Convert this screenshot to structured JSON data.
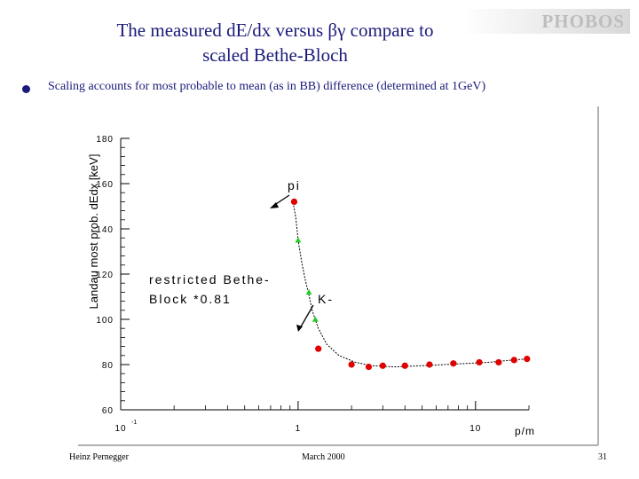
{
  "slide": {
    "title_line1": "The measured dE/dx versus βγ compare to",
    "title_line2": "scaled Bethe-Bloch",
    "logo_text": "PHOBOS",
    "bullet_text_before": "Scaling accounts for most probable to mean (as in ",
    "bullet_text_bb": "BB",
    "bullet_text_after": ") difference (determined at 1GeV)",
    "accent_color": "#1a1a7a"
  },
  "footer": {
    "left": "Heinz Pernegger",
    "center": "March 2000",
    "page": "31"
  },
  "chart_data": {
    "type": "scatter",
    "ylabel": "Landau most prob. dEdx [keV]",
    "xlabel": "p/m",
    "x_scale": "log",
    "xlim": [
      0.1,
      20
    ],
    "ylim": [
      60,
      180
    ],
    "y_ticks": [
      60,
      80,
      100,
      120,
      140,
      160,
      180
    ],
    "x_tick_labels": [
      {
        "value": 0.1,
        "base": "10",
        "exp": "-1"
      },
      {
        "value": 1,
        "base": "1",
        "exp": ""
      },
      {
        "value": 10,
        "base": "10",
        "exp": ""
      }
    ],
    "annotations": {
      "pi": "pi",
      "k": "K-",
      "curve_label_line1": "restricted Bethe-",
      "curve_label_line2": "Block *0.81"
    },
    "series": [
      {
        "color": "#e00000",
        "points": [
          {
            "x": 0.95,
            "y": 152
          },
          {
            "x": 1.3,
            "y": 87
          },
          {
            "x": 2.0,
            "y": 80
          },
          {
            "x": 2.5,
            "y": 79
          },
          {
            "x": 3.0,
            "y": 79.5
          },
          {
            "x": 4.0,
            "y": 79.5
          },
          {
            "x": 5.5,
            "y": 80
          },
          {
            "x": 7.5,
            "y": 80.5
          },
          {
            "x": 10.5,
            "y": 81
          },
          {
            "x": 13.5,
            "y": 81
          },
          {
            "x": 16.5,
            "y": 82
          },
          {
            "x": 19.5,
            "y": 82.5
          }
        ]
      },
      {
        "color": "#22cc22",
        "points": [
          {
            "x": 1.0,
            "y": 135
          },
          {
            "x": 1.15,
            "y": 112
          },
          {
            "x": 1.25,
            "y": 100
          }
        ]
      }
    ],
    "curve": [
      [
        0.93,
        153
      ],
      [
        0.97,
        145
      ],
      [
        1.0,
        135
      ],
      [
        1.05,
        125
      ],
      [
        1.1,
        117
      ],
      [
        1.15,
        111
      ],
      [
        1.2,
        104
      ],
      [
        1.3,
        96
      ],
      [
        1.45,
        89
      ],
      [
        1.7,
        84
      ],
      [
        2.1,
        81
      ],
      [
        2.6,
        79.5
      ],
      [
        3.5,
        79
      ],
      [
        5,
        79.5
      ],
      [
        8,
        80.3
      ],
      [
        12,
        81
      ],
      [
        16,
        82
      ],
      [
        20,
        82.5
      ]
    ]
  }
}
